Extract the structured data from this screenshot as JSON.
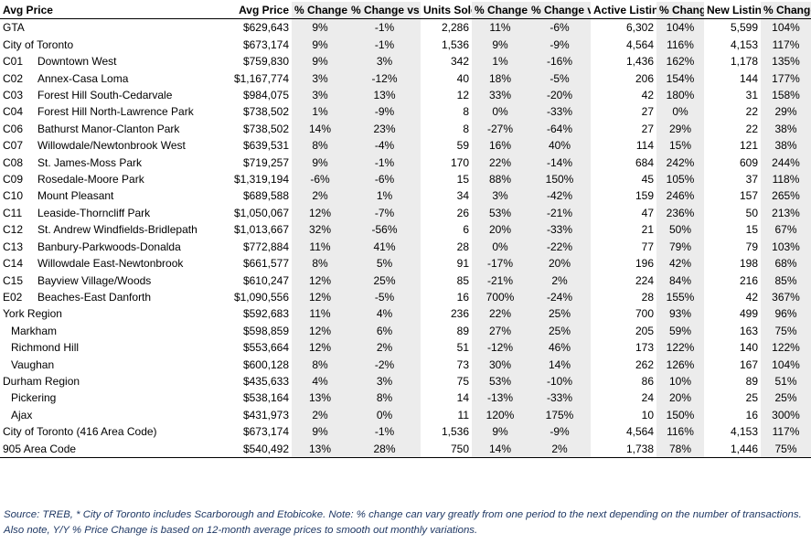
{
  "columns": [
    {
      "label": "Avg Price",
      "align": "left"
    },
    {
      "label": "Avg Price",
      "align": "right"
    },
    {
      "label": "% Change Y/Y",
      "align": "center",
      "shade": true
    },
    {
      "label": "% Change vs Last Month",
      "align": "center",
      "shade": true
    },
    {
      "label": "Units Sold",
      "align": "right"
    },
    {
      "label": "% Change Y/Y",
      "align": "center",
      "shade": true
    },
    {
      "label": "% Change vs Last Month",
      "align": "center",
      "shade": true
    },
    {
      "label": "Active Listings",
      "align": "right"
    },
    {
      "label": "% Change Y/Y",
      "align": "center",
      "shade": true
    },
    {
      "label": "New Listings",
      "align": "right"
    },
    {
      "label": "% Change Y/Y",
      "align": "center",
      "shade": true
    }
  ],
  "rows": [
    {
      "code": "",
      "name": "GTA",
      "indent": false,
      "values": [
        "$629,643",
        "9%",
        "-1%",
        "2,286",
        "11%",
        "-6%",
        "6,302",
        "104%",
        "5,599",
        "104%"
      ]
    },
    {
      "code": "",
      "name": "City of Toronto",
      "indent": false,
      "values": [
        "$673,174",
        "9%",
        "-1%",
        "1,536",
        "9%",
        "-9%",
        "4,564",
        "116%",
        "4,153",
        "117%"
      ]
    },
    {
      "code": "C01",
      "name": "Downtown West",
      "indent": false,
      "values": [
        "$759,830",
        "9%",
        "3%",
        "342",
        "1%",
        "-16%",
        "1,436",
        "162%",
        "1,178",
        "135%"
      ]
    },
    {
      "code": "C02",
      "name": "Annex-Casa Loma",
      "indent": false,
      "values": [
        "$1,167,774",
        "3%",
        "-12%",
        "40",
        "18%",
        "-5%",
        "206",
        "154%",
        "144",
        "177%"
      ]
    },
    {
      "code": "C03",
      "name": "Forest Hill South-Cedarvale",
      "indent": false,
      "values": [
        "$984,075",
        "3%",
        "13%",
        "12",
        "33%",
        "-20%",
        "42",
        "180%",
        "31",
        "158%"
      ]
    },
    {
      "code": "C04",
      "name": "Forest Hill North-Lawrence Park",
      "indent": false,
      "values": [
        "$738,502",
        "1%",
        "-9%",
        "8",
        "0%",
        "-33%",
        "27",
        "0%",
        "22",
        "29%"
      ]
    },
    {
      "code": "C06",
      "name": "Bathurst Manor-Clanton Park",
      "indent": false,
      "values": [
        "$738,502",
        "14%",
        "23%",
        "8",
        "-27%",
        "-64%",
        "27",
        "29%",
        "22",
        "38%"
      ]
    },
    {
      "code": "C07",
      "name": "Willowdale/Newtonbrook West",
      "indent": false,
      "values": [
        "$639,531",
        "8%",
        "-4%",
        "59",
        "16%",
        "40%",
        "114",
        "15%",
        "121",
        "38%"
      ]
    },
    {
      "code": "C08",
      "name": "St. James-Moss Park",
      "indent": false,
      "values": [
        "$719,257",
        "9%",
        "-1%",
        "170",
        "22%",
        "-14%",
        "684",
        "242%",
        "609",
        "244%"
      ]
    },
    {
      "code": "C09",
      "name": "Rosedale-Moore Park",
      "indent": false,
      "values": [
        "$1,319,194",
        "-6%",
        "-6%",
        "15",
        "88%",
        "150%",
        "45",
        "105%",
        "37",
        "118%"
      ]
    },
    {
      "code": "C10",
      "name": "Mount Pleasant",
      "indent": false,
      "values": [
        "$689,588",
        "2%",
        "1%",
        "34",
        "3%",
        "-42%",
        "159",
        "246%",
        "157",
        "265%"
      ]
    },
    {
      "code": "C11",
      "name": "Leaside-Thorncliff Park",
      "indent": false,
      "values": [
        "$1,050,067",
        "12%",
        "-7%",
        "26",
        "53%",
        "-21%",
        "47",
        "236%",
        "50",
        "213%"
      ]
    },
    {
      "code": "C12",
      "name": "St. Andrew Windfields-Bridlepath",
      "indent": false,
      "values": [
        "$1,013,667",
        "32%",
        "-56%",
        "6",
        "20%",
        "-33%",
        "21",
        "50%",
        "15",
        "67%"
      ]
    },
    {
      "code": "C13",
      "name": "Banbury-Parkwoods-Donalda",
      "indent": false,
      "values": [
        "$772,884",
        "11%",
        "41%",
        "28",
        "0%",
        "-22%",
        "77",
        "79%",
        "79",
        "103%"
      ]
    },
    {
      "code": "C14",
      "name": "Willowdale East-Newtonbrook",
      "indent": false,
      "values": [
        "$661,577",
        "8%",
        "5%",
        "91",
        "-17%",
        "20%",
        "196",
        "42%",
        "198",
        "68%"
      ]
    },
    {
      "code": "C15",
      "name": "Bayview Village/Woods",
      "indent": false,
      "values": [
        "$610,247",
        "12%",
        "25%",
        "85",
        "-21%",
        "2%",
        "224",
        "84%",
        "216",
        "85%"
      ]
    },
    {
      "code": "E02",
      "name": "Beaches-East Danforth",
      "indent": false,
      "values": [
        "$1,090,556",
        "12%",
        "-5%",
        "16",
        "700%",
        "-24%",
        "28",
        "155%",
        "42",
        "367%"
      ]
    },
    {
      "code": "",
      "name": "York Region",
      "indent": false,
      "values": [
        "$592,683",
        "11%",
        "4%",
        "236",
        "22%",
        "25%",
        "700",
        "93%",
        "499",
        "96%"
      ]
    },
    {
      "code": "",
      "name": "Markham",
      "indent": true,
      "values": [
        "$598,859",
        "12%",
        "6%",
        "89",
        "27%",
        "25%",
        "205",
        "59%",
        "163",
        "75%"
      ]
    },
    {
      "code": "",
      "name": "Richmond Hill",
      "indent": true,
      "values": [
        "$553,664",
        "12%",
        "2%",
        "51",
        "-12%",
        "46%",
        "173",
        "122%",
        "140",
        "122%"
      ]
    },
    {
      "code": "",
      "name": "Vaughan",
      "indent": true,
      "values": [
        "$600,128",
        "8%",
        "-2%",
        "73",
        "30%",
        "14%",
        "262",
        "126%",
        "167",
        "104%"
      ]
    },
    {
      "code": "",
      "name": "Durham Region",
      "indent": false,
      "values": [
        "$435,633",
        "4%",
        "3%",
        "75",
        "53%",
        "-10%",
        "86",
        "10%",
        "89",
        "51%"
      ]
    },
    {
      "code": "",
      "name": "Pickering",
      "indent": true,
      "values": [
        "$538,164",
        "13%",
        "8%",
        "14",
        "-13%",
        "-33%",
        "24",
        "20%",
        "25",
        "25%"
      ]
    },
    {
      "code": "",
      "name": "Ajax",
      "indent": true,
      "values": [
        "$431,973",
        "2%",
        "0%",
        "11",
        "120%",
        "175%",
        "10",
        "150%",
        "16",
        "300%"
      ]
    },
    {
      "code": "",
      "name": "City of Toronto (416 Area Code)",
      "indent": false,
      "values": [
        "$673,174",
        "9%",
        "-1%",
        "1,536",
        "9%",
        "-9%",
        "4,564",
        "116%",
        "4,153",
        "117%"
      ]
    },
    {
      "code": "",
      "name": "905 Area Code",
      "indent": false,
      "values": [
        "$540,492",
        "13%",
        "28%",
        "750",
        "14%",
        "2%",
        "1,738",
        "78%",
        "1,446",
        "75%"
      ]
    }
  ],
  "footer": "Source: TREB, * City of Toronto includes Scarborough and Etobicoke. Note: % change can vary greatly from one period to the next depending on the number of transactions. Also note, Y/Y % Price Change is based on 12-month average prices to smooth out monthly variations.",
  "colors": {
    "shade": "#ececec",
    "footer_text": "#1f3864"
  }
}
